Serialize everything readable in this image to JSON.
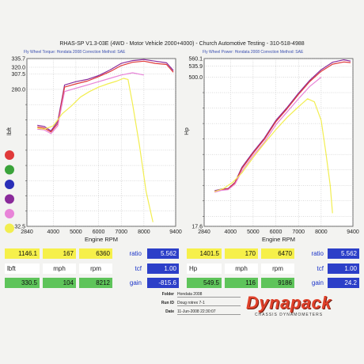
{
  "header": {
    "title": "RHAS-SP V1.3-03E  (4WD - Motor Vehicle 2000+4000) - Church Automotive Testing - 310-518-4988",
    "left_sub": "Fly Wheel Torque: Hondata 2008          Correction Method: SAE",
    "right_sub": "Fly Wheel Power: Hondata 2008          Correction Method: SAE"
  },
  "legend_swatches": [
    {
      "color": "#e03a3a",
      "name": "red"
    },
    {
      "color": "#3aa33a",
      "name": "green"
    },
    {
      "color": "#2a2fb8",
      "name": "blue"
    },
    {
      "color": "#8a2a9a",
      "name": "purple"
    },
    {
      "color": "#e884d8",
      "name": "pink"
    },
    {
      "color": "#f2ee50",
      "name": "yellow"
    }
  ],
  "chart_data": [
    {
      "type": "line",
      "xlabel": "Engine RPM",
      "ylabel": "lbft",
      "xticks": [
        2840,
        4000,
        5000,
        6000,
        7000,
        8000,
        9400
      ],
      "yticks": [
        32.5,
        60.0,
        87.5,
        115.0,
        142.5,
        170.0,
        197.5,
        225.0,
        252.5,
        280.0,
        307.5,
        320.0,
        335.7
      ],
      "ytick_labels": [
        "32.5",
        "",
        "",
        "",
        "",
        "",
        "",
        "",
        "",
        "280.0",
        "307.5",
        "320.0",
        "335.7"
      ],
      "xlim": [
        2840,
        9400
      ],
      "ylim": [
        32.5,
        335.7
      ],
      "series": [
        {
          "color": "#8a2a9a",
          "x": [
            3300,
            3600,
            3900,
            4200,
            4500,
            5000,
            5500,
            6000,
            6500,
            7000,
            7500,
            8000,
            8500,
            9000,
            9300
          ],
          "y": [
            215,
            213,
            205,
            222,
            288,
            294,
            298,
            305,
            315,
            327,
            332,
            334,
            331,
            328,
            314
          ]
        },
        {
          "color": "#e03a3a",
          "x": [
            3300,
            3600,
            3900,
            4200,
            4500,
            5000,
            5500,
            6000,
            6500,
            7000,
            7500,
            8000,
            8500,
            9000,
            9300
          ],
          "y": [
            212,
            210,
            203,
            218,
            284,
            290,
            295,
            303,
            312,
            323,
            329,
            331,
            327,
            325,
            311
          ]
        },
        {
          "color": "#e884d8",
          "x": [
            3300,
            3600,
            3900,
            4200,
            4500,
            5000,
            5500,
            6000,
            6500,
            7000,
            7500,
            8000
          ],
          "y": [
            208,
            207,
            200,
            214,
            276,
            282,
            288,
            294,
            300,
            306,
            310,
            306
          ]
        },
        {
          "color": "#f2ee50",
          "x": [
            3300,
            3600,
            4000,
            4400,
            4800,
            5200,
            5600,
            6000,
            6400,
            6800,
            7100,
            7300,
            7500,
            7800,
            8100,
            8400
          ],
          "y": [
            210,
            208,
            214,
            236,
            250,
            266,
            276,
            284,
            290,
            295,
            300,
            298,
            254,
            180,
            95,
            40
          ]
        }
      ]
    },
    {
      "type": "line",
      "xlabel": "Engine RPM",
      "ylabel": "Hp",
      "xticks": [
        2840,
        4000,
        5000,
        6000,
        7000,
        8000,
        9400
      ],
      "yticks": [
        17.6,
        50.0,
        100.0,
        150.0,
        200.0,
        250.0,
        300.0,
        350.0,
        400.0,
        450.0,
        500.0,
        535.9,
        560.1
      ],
      "ytick_labels": [
        "17.6",
        "",
        "",
        "",
        "",
        "",
        "",
        "",
        "",
        "",
        "500.0",
        "535.9",
        "560.1"
      ],
      "xlim": [
        2840,
        9400
      ],
      "ylim": [
        17.6,
        560.1
      ],
      "series": [
        {
          "color": "#8a2a9a",
          "x": [
            3300,
            3600,
            3900,
            4200,
            4500,
            5000,
            5500,
            6000,
            6500,
            7000,
            7500,
            8000,
            8500,
            9000,
            9300
          ],
          "y": [
            133,
            138,
            140,
            160,
            208,
            258,
            303,
            360,
            402,
            448,
            490,
            524,
            548,
            556,
            552
          ]
        },
        {
          "color": "#e03a3a",
          "x": [
            3300,
            3600,
            3900,
            4200,
            4500,
            5000,
            5500,
            6000,
            6500,
            7000,
            7500,
            8000,
            8500,
            9000,
            9300
          ],
          "y": [
            130,
            136,
            138,
            158,
            204,
            254,
            299,
            356,
            398,
            444,
            486,
            519,
            542,
            549,
            547
          ]
        },
        {
          "color": "#e884d8",
          "x": [
            3300,
            3600,
            3900,
            4200,
            4500,
            5000,
            5500,
            6000,
            6500,
            7000,
            7500,
            8000
          ],
          "y": [
            128,
            134,
            136,
            154,
            196,
            246,
            290,
            346,
            388,
            430,
            470,
            500
          ]
        },
        {
          "color": "#f2ee50",
          "x": [
            3300,
            3700,
            4100,
            4500,
            5000,
            5500,
            6000,
            6500,
            7000,
            7400,
            7700,
            8000,
            8200,
            8400,
            8500
          ],
          "y": [
            130,
            140,
            160,
            190,
            240,
            286,
            330,
            370,
            404,
            430,
            420,
            360,
            260,
            150,
            60
          ]
        }
      ]
    }
  ],
  "readouts": {
    "left": {
      "row1": {
        "v1": "1146.1",
        "v2": "167",
        "v3": "6360",
        "label": "ratio",
        "v4": "5.562"
      },
      "row2": {
        "u1": "lbft",
        "u2": "mph",
        "u3": "rpm",
        "label": "tcf",
        "v4": "1.00"
      },
      "row3": {
        "v1": "330.5",
        "v2": "104",
        "v3": "8212",
        "label": "gain",
        "v4": "-815.6"
      }
    },
    "right": {
      "row1": {
        "v1": "1401.5",
        "v2": "170",
        "v3": "6470",
        "label": "ratio",
        "v4": "5.562"
      },
      "row2": {
        "u1": "Hp",
        "u2": "mph",
        "u3": "rpm",
        "label": "tcf",
        "v4": "1.00"
      },
      "row3": {
        "v1": "549.5",
        "v2": "116",
        "v3": "9186",
        "label": "gain",
        "v4": "24.2"
      }
    }
  },
  "footer": {
    "folder_label": "Folder",
    "folder_value": "Hondata 2008",
    "run_label": "Run ID",
    "run_value": "Doug rotrex 7-1",
    "date_label": "Date",
    "date_value": "11-Jun-2008   22:30:07"
  },
  "logo": {
    "text": "Dynapack",
    "subtitle": "CHASSIS DYNAMOMETERS"
  }
}
